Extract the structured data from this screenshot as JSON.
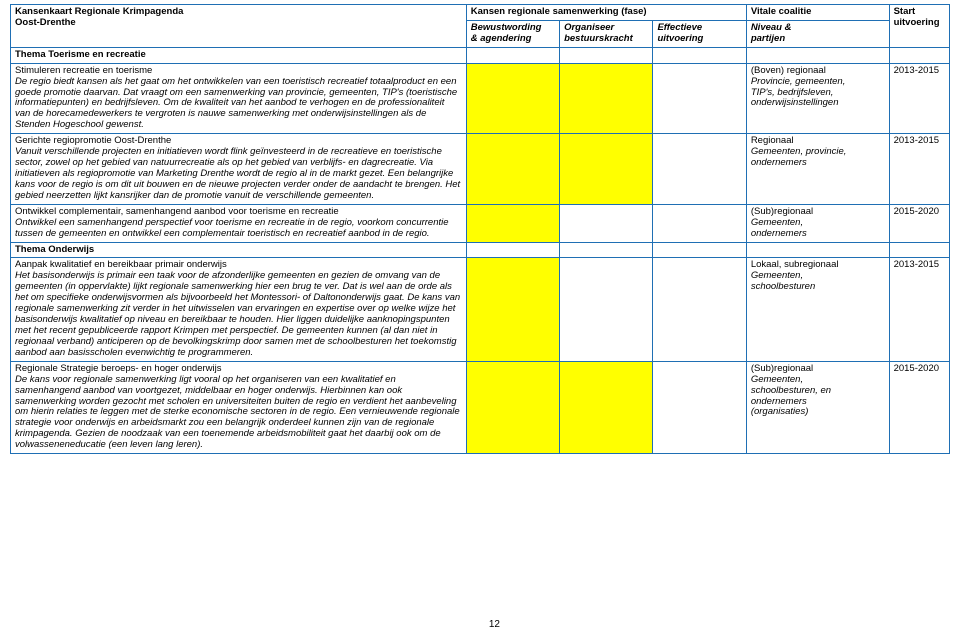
{
  "header": {
    "title_line1": "Kansenkaart Regionale Krimpagenda",
    "title_line2": "Oost-Drenthe",
    "kansen_title": "Kansen regionale samenwerking (fase)",
    "phase1_top": "Bewustwording",
    "phase1_bot": "& agendering",
    "phase2_top": "Organiseer",
    "phase2_bot": "bestuurskracht",
    "phase3_top": "Effectieve",
    "phase3_bot": "uitvoering",
    "vitale_title": "Vitale coalitie",
    "vitale_sub_top": "Niveau &",
    "vitale_sub_bot": "partijen",
    "start_top": "Start",
    "start_bot": "uitvoering"
  },
  "theme1": "Thema Toerisme en recreatie",
  "row1": {
    "title": "Stimuleren recreatie en toerisme",
    "body": "De regio biedt kansen als het gaat om het ontwikkelen van een toeristisch recreatief totaalproduct en een goede promotie daarvan. Dat vraagt om een samenwerking van provincie, gemeenten, TIP's (toeristische informatiepunten) en bedrijfsleven. Om de kwaliteit van het aanbod te verhogen en de professionaliteit van de horecamedewerkers te vergroten is nauwe samenwerking met onderwijsinstellingen als de Stenden Hogeschool gewenst.",
    "vc_l1": "(Boven) regionaal",
    "vc_l2": "Provincie, gemeenten,",
    "vc_l3": "TIP's, bedrijfsleven,",
    "vc_l4": "onderwijsinstellingen",
    "start": "2013-2015"
  },
  "row2": {
    "title": "Gerichte regiopromotie Oost-Drenthe",
    "body": "Vanuit verschillende projecten en initiatieven wordt flink geïnvesteerd in de recreatieve en toeristische sector, zowel op het gebied van natuurrecreatie als op het gebied van verblijfs- en dagrecreatie. Via initiatieven als regiopromotie van Marketing Drenthe wordt de regio al in de markt gezet. Een belangrijke kans voor de regio is om dit uit bouwen en de nieuwe projecten verder onder de aandacht te brengen. Het gebied neerzetten lijkt kansrijker dan de promotie vanuit de verschillende gemeenten.",
    "vc_l1": "Regionaal",
    "vc_l2": "Gemeenten, provincie,",
    "vc_l3": "ondernemers",
    "start": "2013-2015"
  },
  "row3": {
    "title": "Ontwikkel complementair, samenhangend aanbod voor toerisme en recreatie",
    "body": "Ontwikkel een samenhangend perspectief voor toerisme en recreatie in de regio, voorkom concurrentie tussen de gemeenten en ontwikkel een complementair toeristisch en recreatief aanbod in de regio.",
    "vc_l1": "(Sub)regionaal",
    "vc_l2": "Gemeenten,",
    "vc_l3": "ondernemers",
    "start": "2015-2020"
  },
  "theme2": "Thema Onderwijs",
  "row4": {
    "title": "Aanpak kwalitatief en bereikbaar primair onderwijs",
    "body": "Het basisonderwijs is primair een taak voor de afzonderlijke gemeenten en gezien de omvang van de gemeenten (in oppervlakte) lijkt regionale samenwerking hier een brug te ver. Dat is wel aan de orde als het om specifieke onderwijsvormen als bijvoorbeeld het Montessori- of Daltononderwijs gaat. De kans van regionale samenwerking zit verder in het uitwisselen van ervaringen en expertise over op welke wijze het basisonderwijs kwalitatief op niveau en bereikbaar te houden. Hier liggen duidelijke aanknopingspunten met het recent gepubliceerde rapport Krimpen met perspectief. De gemeenten kunnen (al dan niet in regionaal verband) anticiperen op de bevolkingskrimp door samen met de schoolbesturen het toekomstig aanbod aan basisscholen evenwichtig te programmeren.",
    "vc_l1": "Lokaal, subregionaal",
    "vc_l2": "Gemeenten,",
    "vc_l3": "schoolbesturen",
    "start": "2013-2015"
  },
  "row5": {
    "title": "Regionale Strategie beroeps- en hoger onderwijs",
    "body": "De kans voor regionale samenwerking ligt vooral op het organiseren van een kwalitatief en samenhangend aanbod van voortgezet, middelbaar en hoger onderwijs. Hierbinnen kan ook samenwerking worden gezocht met scholen en universiteiten buiten de regio en verdient het aanbeveling om hierin relaties te leggen met de sterke economische sectoren in de regio. Een vernieuwende regionale strategie voor onderwijs en arbeidsmarkt zou een belangrijk onderdeel kunnen zijn van de regionale krimpagenda. Gezien de noodzaak van een toenemende arbeidsmobiliteit gaat het daarbij ook om de volwasseneneducatie (een leven lang leren).",
    "vc_l1": "(Sub)regionaal",
    "vc_l2": "Gemeenten,",
    "vc_l3": "schoolbesturen, en",
    "vc_l4": "ondernemers",
    "vc_l5": "(organisaties)",
    "start": "2015-2020"
  },
  "pagenum": "12",
  "colors": {
    "border": "#1f6fb4",
    "highlight": "#ffff00",
    "background": "#ffffff",
    "text": "#000000"
  }
}
